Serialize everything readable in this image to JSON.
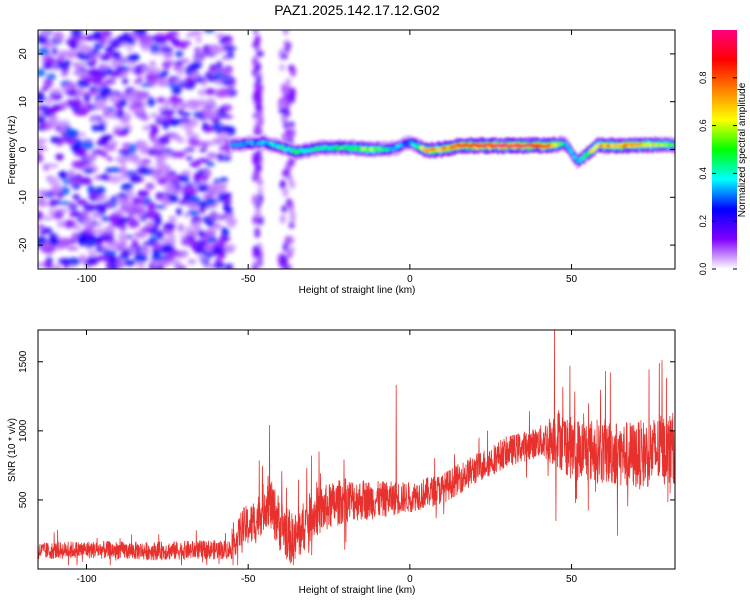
{
  "title": "PAZ1.2025.142.17.12.G02",
  "chart_data": [
    {
      "type": "heatmap",
      "xlabel": "Height of straight line (km)",
      "ylabel": "Frequency (Hz)",
      "xlim": [
        -115,
        82
      ],
      "ylim": [
        -25,
        25
      ],
      "xticks": [
        -100,
        -50,
        0,
        50
      ],
      "yticks": [
        -20,
        -10,
        0,
        10,
        20
      ],
      "colorbar": {
        "label": "Normalized spectral amplitude",
        "range": [
          0,
          1
        ],
        "ticks": [
          0.0,
          0.2,
          0.4,
          0.6,
          0.8
        ],
        "colors": [
          "#ffffff",
          "#8000ff",
          "#0000ff",
          "#00ffff",
          "#00ff00",
          "#ffff00",
          "#ff8000",
          "#ff0000",
          "#ff0080"
        ]
      },
      "noise_region": {
        "x": [
          -115,
          -55
        ],
        "y": [
          -25,
          25
        ],
        "amplitude": [
          0.05,
          0.3
        ]
      },
      "signal_line": {
        "points": [
          {
            "x": -55,
            "y": 1.0,
            "amp": 0.3
          },
          {
            "x": -45,
            "y": 1.5,
            "amp": 0.35
          },
          {
            "x": -35,
            "y": -0.5,
            "amp": 0.45
          },
          {
            "x": -28,
            "y": 0.3,
            "amp": 0.4
          },
          {
            "x": -20,
            "y": 0.5,
            "amp": 0.5
          },
          {
            "x": -12,
            "y": 0.0,
            "amp": 0.6
          },
          {
            "x": -5,
            "y": 0.2,
            "amp": 0.35
          },
          {
            "x": 0,
            "y": 1.5,
            "amp": 0.3
          },
          {
            "x": 5,
            "y": -0.2,
            "amp": 0.7
          },
          {
            "x": 10,
            "y": 0.0,
            "amp": 0.75
          },
          {
            "x": 15,
            "y": 0.8,
            "amp": 0.85
          },
          {
            "x": 25,
            "y": 0.8,
            "amp": 0.95
          },
          {
            "x": 35,
            "y": 0.8,
            "amp": 0.95
          },
          {
            "x": 42,
            "y": 0.8,
            "amp": 0.9
          },
          {
            "x": 48,
            "y": 1.2,
            "amp": 0.4
          },
          {
            "x": 52,
            "y": -2.5,
            "amp": 0.35
          },
          {
            "x": 58,
            "y": 0.8,
            "amp": 0.7
          },
          {
            "x": 65,
            "y": 0.8,
            "amp": 0.75
          },
          {
            "x": 72,
            "y": 1.0,
            "amp": 0.7
          },
          {
            "x": 82,
            "y": 1.0,
            "amp": 0.5
          }
        ]
      }
    },
    {
      "type": "line",
      "xlabel": "Height of straight line (km)",
      "ylabel": "SNR (10 * v/v)",
      "xlim": [
        -115,
        82
      ],
      "ylim": [
        0,
        1730
      ],
      "xticks": [
        -100,
        -50,
        0,
        50
      ],
      "yticks": [
        500,
        1000,
        1500
      ],
      "series": [
        {
          "color": "#e8302c",
          "trend": [
            {
              "x": -115,
              "y": 130
            },
            {
              "x": -100,
              "y": 140
            },
            {
              "x": -80,
              "y": 130
            },
            {
              "x": -60,
              "y": 140
            },
            {
              "x": -55,
              "y": 140
            },
            {
              "x": -52,
              "y": 300
            },
            {
              "x": -48,
              "y": 330
            },
            {
              "x": -44,
              "y": 500
            },
            {
              "x": -40,
              "y": 320
            },
            {
              "x": -36,
              "y": 200
            },
            {
              "x": -30,
              "y": 400
            },
            {
              "x": -20,
              "y": 500
            },
            {
              "x": -10,
              "y": 500
            },
            {
              "x": 0,
              "y": 520
            },
            {
              "x": 10,
              "y": 580
            },
            {
              "x": 20,
              "y": 720
            },
            {
              "x": 30,
              "y": 850
            },
            {
              "x": 40,
              "y": 920
            },
            {
              "x": 46,
              "y": 950
            },
            {
              "x": 50,
              "y": 870
            },
            {
              "x": 60,
              "y": 850
            },
            {
              "x": 70,
              "y": 820
            },
            {
              "x": 82,
              "y": 880
            }
          ],
          "amplitude": [
            {
              "x": -115,
              "y": 60
            },
            {
              "x": -55,
              "y": 70
            },
            {
              "x": -52,
              "y": 140
            },
            {
              "x": -40,
              "y": 200
            },
            {
              "x": -20,
              "y": 160
            },
            {
              "x": 0,
              "y": 110
            },
            {
              "x": 40,
              "y": 110
            },
            {
              "x": 46,
              "y": 220
            },
            {
              "x": 82,
              "y": 260
            }
          ],
          "spikes": [
            {
              "x": 44.7,
              "y": 1730
            },
            {
              "x": 45.2,
              "y": 350
            },
            {
              "x": -4.2,
              "y": 1330
            },
            {
              "x": -43.4,
              "y": 1040
            },
            {
              "x": 78,
              "y": 1510
            },
            {
              "x": 60.5,
              "y": 1430
            },
            {
              "x": 49.5,
              "y": 1470
            },
            {
              "x": 62,
              "y": 1420
            },
            {
              "x": 80.5,
              "y": 550
            },
            {
              "x": 51.5,
              "y": 510
            }
          ]
        }
      ]
    }
  ]
}
